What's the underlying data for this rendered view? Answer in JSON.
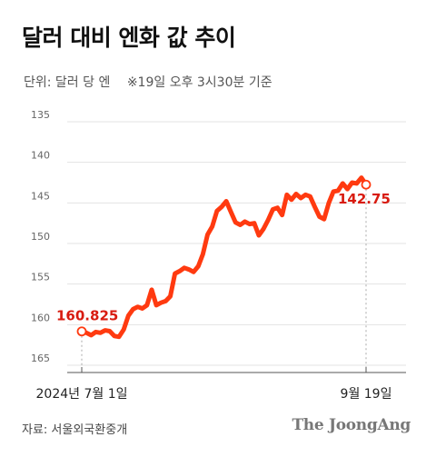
{
  "title": "달러 대비 엔화 값 추이",
  "subtitle": {
    "unit": "단위: 달러 당 엔",
    "note": "※19일 오후 3시30분 기준"
  },
  "source": "자료: 서울외국환중개",
  "brand": "The JoongAng",
  "colors": {
    "line": "#ff3a10",
    "label": "#d81b10",
    "grid": "#e3e3e3",
    "axis": "#555555"
  },
  "chart_data": {
    "type": "line",
    "y_inverted": true,
    "ylim": [
      135,
      165
    ],
    "yticks": [
      135,
      140,
      145,
      150,
      155,
      160,
      165
    ],
    "x_tick_labels": [
      "2024년 7월 1일",
      "9월 19일"
    ],
    "start_label": "160.825",
    "end_label": "142.75",
    "series": [
      {
        "values": [
          160.83,
          161.0,
          161.3,
          160.9,
          161.0,
          160.7,
          160.8,
          161.4,
          161.5,
          160.6,
          158.9,
          158.1,
          157.8,
          158.0,
          157.6,
          155.7,
          157.6,
          157.3,
          157.1,
          156.5,
          153.7,
          153.4,
          153.0,
          153.2,
          153.5,
          152.8,
          151.3,
          148.9,
          147.9,
          146.0,
          145.5,
          144.8,
          146.1,
          147.4,
          147.7,
          147.3,
          147.6,
          147.5,
          149.0,
          148.2,
          147.1,
          145.8,
          145.6,
          146.5,
          144.0,
          144.6,
          143.9,
          144.4,
          144.0,
          144.2,
          145.5,
          146.7,
          147.0,
          145.0,
          143.6,
          143.5,
          142.6,
          143.3,
          142.5,
          142.6,
          141.9,
          142.75
        ]
      }
    ]
  }
}
